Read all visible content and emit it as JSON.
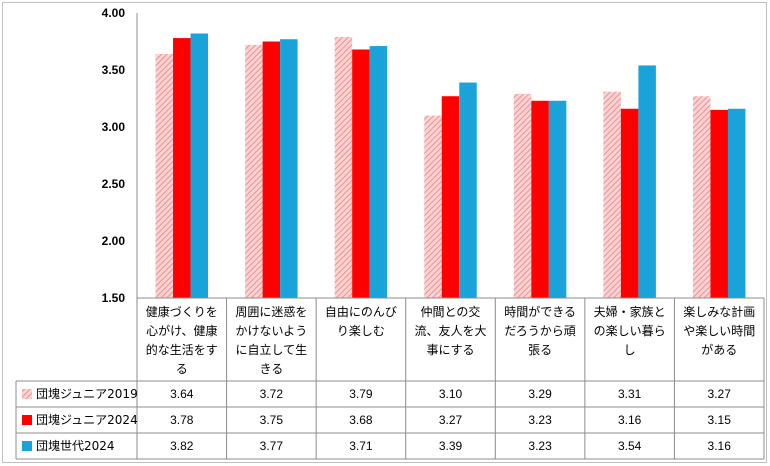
{
  "chart_data": {
    "type": "bar",
    "title": "",
    "xlabel": "",
    "ylabel": "",
    "ylim": [
      1.5,
      4.0
    ],
    "yticks": [
      "1.50",
      "2.00",
      "2.50",
      "3.00",
      "3.50",
      "4.00"
    ],
    "grid": false,
    "legend": "data-table-left",
    "categories": [
      [
        "健康づくりを",
        "心がけ、健康",
        "的な生活をす",
        "る"
      ],
      [
        "周囲に迷惑を",
        "かけないよう",
        "に自立して生",
        "きる"
      ],
      [
        "自由にのんび",
        "り楽しむ"
      ],
      [
        "仲間との交",
        "流、友人を大",
        "事にする"
      ],
      [
        "時間ができる",
        "だろうから頑",
        "張る"
      ],
      [
        "夫婦・家族と",
        "の楽しい暮ら",
        "し"
      ],
      [
        "楽しみな計画",
        "や楽しい時間",
        "がある"
      ]
    ],
    "series": [
      {
        "name": "団塊ジュニア2019",
        "color": "#f4a6a6",
        "pattern": "hatched",
        "values": [
          3.64,
          3.72,
          3.79,
          3.1,
          3.29,
          3.31,
          3.27
        ]
      },
      {
        "name": "団塊ジュニア2024",
        "color": "#ff0000",
        "pattern": "solid",
        "values": [
          3.78,
          3.75,
          3.68,
          3.27,
          3.23,
          3.16,
          3.15
        ]
      },
      {
        "name": "団塊世代2024",
        "color": "#1aa3d9",
        "pattern": "solid",
        "values": [
          3.82,
          3.77,
          3.71,
          3.39,
          3.23,
          3.54,
          3.16
        ]
      }
    ]
  }
}
